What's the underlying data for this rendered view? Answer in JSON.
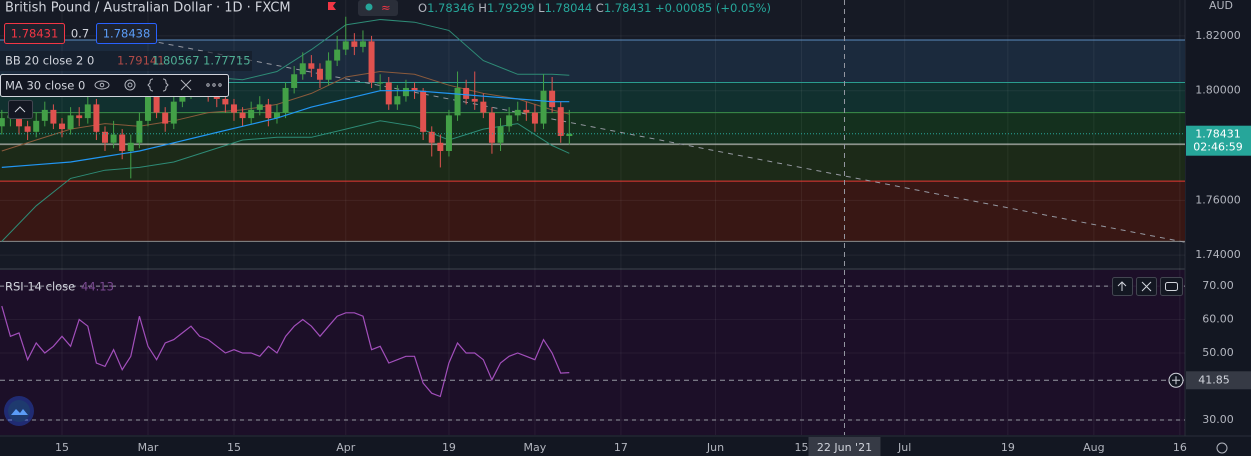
{
  "header": {
    "title": "British Pound / Australian Dollar · 1D · FXCM",
    "ohlc_labels": [
      "O",
      "H",
      "L",
      "C"
    ],
    "change": "+0.00085 (+0.05%)",
    "spread": "0.7",
    "ask": "1.78438",
    "bb_label": "BB 20 close 2 0",
    "ma_label": "MA 30 close 0",
    "rsi_label": "RSI 14 close",
    "currency": "AUD",
    "countdown": "02:46:59"
  },
  "chart_data": [
    {
      "type": "candlestick",
      "up_color": "#43a047",
      "down_color": "#e0524f",
      "x": [
        0,
        1,
        2,
        3,
        4,
        5,
        6,
        7,
        8,
        9,
        10,
        11,
        12,
        13,
        14,
        15,
        16,
        17,
        18,
        19,
        20,
        21,
        22,
        23,
        24,
        25,
        26,
        27,
        28,
        29,
        30,
        31,
        32,
        33,
        34,
        35,
        36,
        37,
        38,
        39,
        40,
        41,
        42,
        43,
        44,
        45,
        46,
        47,
        48,
        49,
        50,
        51,
        52,
        53,
        54,
        55,
        56,
        57,
        58,
        59,
        60,
        61,
        62,
        63,
        64,
        65,
        66
      ],
      "open": [
        1.787,
        1.79,
        1.791,
        1.787,
        1.785,
        1.789,
        1.793,
        1.788,
        1.786,
        1.791,
        1.79,
        1.795,
        1.785,
        1.781,
        1.784,
        1.778,
        1.781,
        1.789,
        1.799,
        1.792,
        1.788,
        1.796,
        1.799,
        1.801,
        1.803,
        1.799,
        1.797,
        1.795,
        1.792,
        1.79,
        1.793,
        1.795,
        1.79,
        1.792,
        1.801,
        1.806,
        1.81,
        1.808,
        1.804,
        1.811,
        1.815,
        1.818,
        1.816,
        1.818,
        1.803,
        1.803,
        1.795,
        1.798,
        1.801,
        1.8,
        1.785,
        1.781,
        1.778,
        1.791,
        1.801,
        1.797,
        1.796,
        1.792,
        1.781,
        1.787,
        1.791,
        1.793,
        1.792,
        1.788,
        1.8,
        1.794,
        1.78346
      ],
      "high": [
        1.793,
        1.795,
        1.793,
        1.789,
        1.792,
        1.796,
        1.795,
        1.79,
        1.794,
        1.794,
        1.8,
        1.797,
        1.787,
        1.789,
        1.786,
        1.784,
        1.792,
        1.802,
        1.801,
        1.794,
        1.798,
        1.802,
        1.804,
        1.806,
        1.805,
        1.801,
        1.799,
        1.797,
        1.794,
        1.796,
        1.798,
        1.797,
        1.795,
        1.803,
        1.809,
        1.814,
        1.813,
        1.81,
        1.814,
        1.82,
        1.827,
        1.821,
        1.822,
        1.82,
        1.806,
        1.805,
        1.802,
        1.804,
        1.803,
        1.801,
        1.787,
        1.784,
        1.793,
        1.807,
        1.804,
        1.807,
        1.799,
        1.794,
        1.79,
        1.794,
        1.796,
        1.796,
        1.795,
        1.806,
        1.805,
        1.796,
        1.79299
      ],
      "low": [
        1.784,
        1.787,
        1.784,
        1.782,
        1.783,
        1.787,
        1.786,
        1.783,
        1.784,
        1.787,
        1.788,
        1.782,
        1.778,
        1.779,
        1.775,
        1.768,
        1.779,
        1.787,
        1.79,
        1.785,
        1.786,
        1.794,
        1.797,
        1.799,
        1.796,
        1.794,
        1.792,
        1.789,
        1.787,
        1.788,
        1.791,
        1.787,
        1.788,
        1.79,
        1.799,
        1.804,
        1.805,
        1.801,
        1.802,
        1.809,
        1.813,
        1.813,
        1.814,
        1.801,
        1.8,
        1.793,
        1.793,
        1.796,
        1.797,
        1.782,
        1.776,
        1.772,
        1.776,
        1.789,
        1.795,
        1.793,
        1.79,
        1.777,
        1.778,
        1.785,
        1.789,
        1.789,
        1.785,
        1.786,
        1.792,
        1.781,
        1.78044
      ],
      "close": [
        1.79,
        1.791,
        1.787,
        1.785,
        1.789,
        1.793,
        1.788,
        1.786,
        1.791,
        1.79,
        1.795,
        1.785,
        1.781,
        1.784,
        1.778,
        1.781,
        1.789,
        1.799,
        1.792,
        1.788,
        1.796,
        1.799,
        1.801,
        1.803,
        1.799,
        1.797,
        1.795,
        1.792,
        1.79,
        1.793,
        1.795,
        1.79,
        1.792,
        1.801,
        1.806,
        1.81,
        1.808,
        1.804,
        1.811,
        1.815,
        1.818,
        1.816,
        1.818,
        1.803,
        1.803,
        1.795,
        1.798,
        1.801,
        1.8,
        1.785,
        1.781,
        1.778,
        1.791,
        1.801,
        1.797,
        1.796,
        1.792,
        1.781,
        1.787,
        1.791,
        1.793,
        1.792,
        1.788,
        1.8,
        1.794,
        1.7835,
        1.78431
      ],
      "indicators": [
        {
          "color": "#2e8b76",
          "x": [
            0,
            4,
            8,
            12,
            16,
            20,
            24,
            28,
            32,
            36,
            40,
            44,
            48,
            52,
            56,
            60,
            64,
            66
          ],
          "values": [
            1.806,
            1.805,
            1.804,
            1.804,
            1.803,
            1.804,
            1.805,
            1.804,
            1.807,
            1.815,
            1.824,
            1.826,
            1.825,
            1.822,
            1.811,
            1.806,
            1.806,
            1.80567
          ]
        },
        {
          "color": "#8a5a3c",
          "x": [
            0,
            4,
            8,
            12,
            16,
            20,
            24,
            28,
            32,
            36,
            40,
            44,
            48,
            52,
            56,
            60,
            64,
            66
          ],
          "values": [
            1.778,
            1.782,
            1.786,
            1.788,
            1.787,
            1.789,
            1.792,
            1.793,
            1.795,
            1.799,
            1.805,
            1.807,
            1.806,
            1.802,
            1.799,
            1.797,
            1.793,
            1.79141
          ]
        },
        {
          "color": "#2e8b76",
          "x": [
            0,
            4,
            8,
            12,
            16,
            20,
            24,
            28,
            32,
            36,
            40,
            44,
            48,
            52,
            56,
            60,
            64,
            66
          ],
          "values": [
            1.745,
            1.758,
            1.768,
            1.771,
            1.772,
            1.774,
            1.778,
            1.782,
            1.783,
            1.783,
            1.786,
            1.789,
            1.787,
            1.782,
            1.786,
            1.788,
            1.78,
            1.77715
          ]
        },
        {
          "color": "#2196f3",
          "x": [
            0,
            4,
            8,
            12,
            16,
            20,
            24,
            28,
            32,
            36,
            40,
            44,
            48,
            52,
            56,
            60,
            64,
            66
          ],
          "values": [
            1.772,
            1.773,
            1.774,
            1.776,
            1.778,
            1.781,
            1.784,
            1.787,
            1.79,
            1.794,
            1.797,
            1.8,
            1.8,
            1.799,
            1.798,
            1.797,
            1.796,
            1.796
          ]
        }
      ],
      "levels": [
        1.8185,
        1.803,
        1.792,
        1.7805,
        1.767,
        1.745
      ],
      "level_colors": [
        "#5b8cbf",
        "#2a9d8f",
        "#3c8f4a",
        "#d0d0d0",
        "#e53935",
        "#8a8a8a"
      ],
      "zone_colors": [
        "#1b2a3d",
        "#11302f",
        "#14301e",
        "#1c2a18",
        "#381714"
      ],
      "trendline": {
        "x": [
          11.4,
          137.6
        ],
        "y": [
          1.8218,
          1.7447
        ]
      },
      "xlim": [
        -0.21,
        137.6
      ],
      "xticks": [
        {
          "value": 7,
          "label": "15"
        },
        {
          "value": 17,
          "label": "Mar"
        },
        {
          "value": 27,
          "label": "15"
        },
        {
          "value": 40,
          "label": "Apr"
        },
        {
          "value": 52,
          "label": "19"
        },
        {
          "value": 62,
          "label": "May"
        },
        {
          "value": 72,
          "label": "17"
        },
        {
          "value": 83,
          "label": "Jun"
        },
        {
          "value": 93,
          "label": "15"
        },
        {
          "value": 105,
          "label": "Jul"
        },
        {
          "value": 117,
          "label": "19"
        },
        {
          "value": 127,
          "label": "Aug"
        },
        {
          "value": 137,
          "label": "16"
        }
      ],
      "ylim": [
        1.7353,
        1.8331
      ],
      "yticks": [
        {
          "value": 1.82,
          "label": "1.82000"
        },
        {
          "value": 1.8,
          "label": "1.80000"
        },
        {
          "value": 1.78,
          "label": "1.78000"
        },
        {
          "value": 1.76,
          "label": "1.76000"
        },
        {
          "value": 1.74,
          "label": "1.74000"
        }
      ],
      "grid": true,
      "crosshair_x": 98,
      "crosshair_label": "22 Jun '21"
    },
    {
      "type": "line",
      "color": "#a24fbb",
      "x": [
        0,
        1,
        2,
        3,
        4,
        5,
        6,
        7,
        8,
        9,
        10,
        11,
        12,
        13,
        14,
        15,
        16,
        17,
        18,
        19,
        20,
        21,
        22,
        23,
        24,
        25,
        26,
        27,
        28,
        29,
        30,
        31,
        32,
        33,
        34,
        35,
        36,
        37,
        38,
        39,
        40,
        41,
        42,
        43,
        44,
        45,
        46,
        47,
        48,
        49,
        50,
        51,
        52,
        53,
        54,
        55,
        56,
        57,
        58,
        59,
        60,
        61,
        62,
        63,
        64,
        65,
        66
      ],
      "values": [
        64,
        55,
        56,
        48,
        53,
        50,
        52,
        55,
        52,
        60,
        58,
        47,
        46,
        51,
        45,
        49,
        61,
        52,
        48,
        53,
        54,
        56,
        58,
        55,
        54,
        52,
        50,
        51,
        50,
        50,
        49,
        52,
        50,
        55,
        58,
        60,
        58,
        55,
        58,
        61,
        62,
        62,
        61,
        51,
        52,
        47,
        48,
        49,
        49,
        41,
        38,
        37,
        47,
        53,
        50,
        50,
        48,
        42,
        47,
        49,
        50,
        49,
        48,
        54,
        50,
        44,
        44.13
      ],
      "ylim": [
        25.5,
        74.8
      ],
      "yticks": [
        {
          "value": 70,
          "label": "70.00"
        },
        {
          "value": 60,
          "label": "60.00"
        },
        {
          "value": 50,
          "label": "50.00"
        },
        {
          "value": 30,
          "label": "30.00"
        }
      ],
      "hlines": [
        70,
        30
      ],
      "crosshair_value": 41.85
    }
  ]
}
